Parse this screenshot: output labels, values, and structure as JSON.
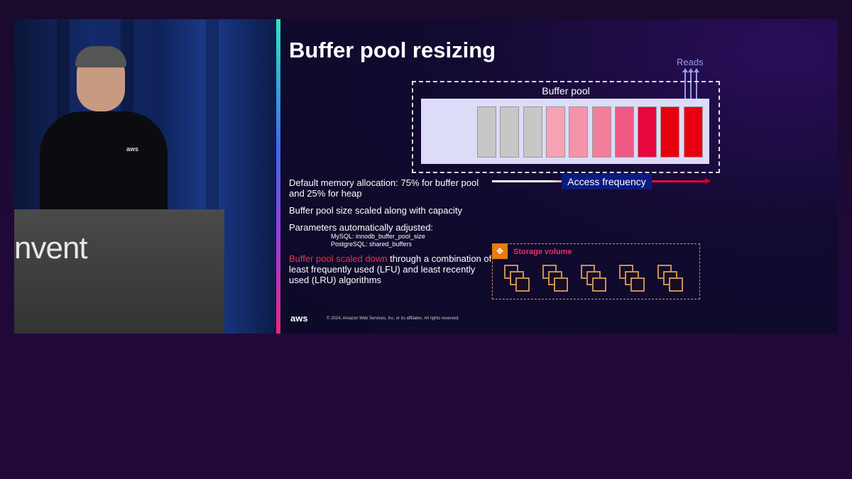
{
  "video": {
    "podium_logo": "nvent",
    "shirt_logo": "aws"
  },
  "slide": {
    "title": "Buffer pool resizing",
    "diagram": {
      "buffer_pool_label": "Buffer pool",
      "reads_label": "Reads",
      "access_frequency_label": "Access frequency",
      "block_colors": [
        "#c8c6c6",
        "#c8c6c6",
        "#c8c6c6",
        "#f5a3b5",
        "#f593a8",
        "#f47f9a",
        "#ef5a84",
        "#e8083e",
        "#e80010",
        "#e80010"
      ],
      "storage_volume_label": "Storage volume",
      "storage_volume_count": 5
    },
    "bullets": {
      "b1": "Default memory allocation: 75% for buffer pool and 25% for heap",
      "b2": "Buffer pool size scaled along with capacity",
      "b3": "Parameters automatically adjusted:",
      "b3_mysql": "MySQL: innodb_buffer_pool_size",
      "b3_pg": "PostgreSQL: shared_buffers",
      "b4_highlight": "Buffer pool scaled down",
      "b4_rest": " through a combination of least frequently used (LFU) and least recently used (LRU) algorithms"
    },
    "footer": {
      "logo": "aws",
      "copyright": "© 2024, Amazon Web Services, Inc. or its affiliates. All rights reserved."
    }
  }
}
